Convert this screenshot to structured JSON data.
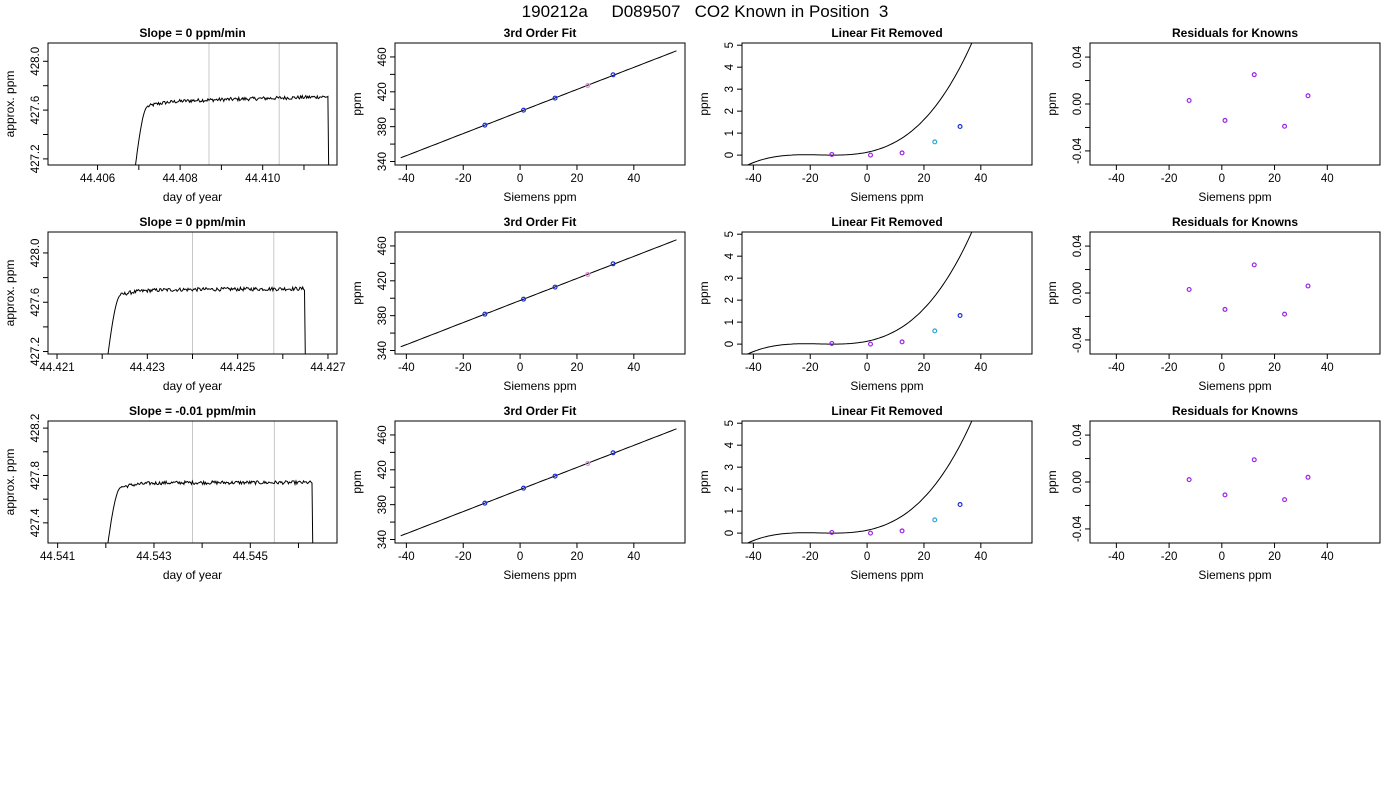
{
  "title": "190212a     D089507   CO2 Known in Position  3",
  "colors": {
    "trace": "#000000",
    "window_line": "#c8c8c8",
    "point_blue": "#1a2fd6",
    "point_purple": "#9a22e8",
    "point_cyan": "#2aa7d6",
    "point_pink": "#e08ad6"
  },
  "chart_data": [
    {
      "type": "line",
      "row": 0,
      "col": 0,
      "title": "Slope =  0  ppm/min",
      "xlabel": "day of year",
      "ylabel": "approx. ppm",
      "xlim": [
        44.4048,
        44.4118
      ],
      "ylim": [
        427.15,
        428.15
      ],
      "xticks": [
        44.406,
        44.407,
        44.408,
        44.409,
        44.41,
        44.411
      ],
      "xtick_labels": [
        "44.406",
        "",
        "44.408",
        "",
        "44.410",
        ""
      ],
      "yticks": [
        427.2,
        427.4,
        427.6,
        427.8,
        428.0
      ],
      "ytick_labels": [
        "427.2",
        "",
        "427.6",
        "",
        "428.0"
      ],
      "vlines": [
        44.4087,
        44.4104
      ],
      "trace": {
        "start": 44.4069,
        "end": 44.4116,
        "plateau": 427.67,
        "low": 427.1,
        "rise_days": 0.00032,
        "drift": 0.04
      }
    },
    {
      "type": "scatter",
      "row": 0,
      "col": 1,
      "title": "3rd Order Fit",
      "xlabel": "Siemens ppm",
      "ylabel": "ppm",
      "xlim": [
        -44,
        58
      ],
      "ylim": [
        336,
        476
      ],
      "xticks": [
        -40,
        -20,
        0,
        20,
        40
      ],
      "yticks": [
        340,
        360,
        380,
        400,
        420,
        440,
        460
      ],
      "ytick_labels": [
        "340",
        "",
        "380",
        "",
        "420",
        "",
        "460"
      ],
      "fit": {
        "x_start": -42,
        "x_end": 55
      },
      "points": [
        {
          "x": -12.4,
          "y": 381.7,
          "color": "blue"
        },
        {
          "x": 1.2,
          "y": 398.9,
          "color": "blue"
        },
        {
          "x": 12.3,
          "y": 412.8,
          "color": "blue"
        },
        {
          "x": 23.8,
          "y": 427.3,
          "color": "pink"
        },
        {
          "x": 32.7,
          "y": 439.5,
          "color": "blue"
        }
      ]
    },
    {
      "type": "scatter",
      "row": 0,
      "col": 2,
      "title": "Linear Fit Removed",
      "xlabel": "Siemens ppm",
      "ylabel": "ppm",
      "xlim": [
        -44,
        58
      ],
      "ylim": [
        -0.45,
        5.1
      ],
      "xticks": [
        -40,
        -20,
        0,
        20,
        40
      ],
      "yticks": [
        0,
        1,
        2,
        3,
        4,
        5
      ],
      "fit": {
        "x_start": -42,
        "x_end": 55
      },
      "points": [
        {
          "x": -12.4,
          "y": 0.03,
          "color": "purple"
        },
        {
          "x": 1.2,
          "y": 0.0,
          "color": "purple"
        },
        {
          "x": 12.3,
          "y": 0.1,
          "color": "purple"
        },
        {
          "x": 23.8,
          "y": 0.6,
          "color": "cyan"
        },
        {
          "x": 32.7,
          "y": 1.3,
          "color": "blue"
        }
      ]
    },
    {
      "type": "scatter",
      "row": 0,
      "col": 3,
      "title": "Residuals for Knowns",
      "xlabel": "Siemens ppm",
      "ylabel": "ppm",
      "xlim": [
        -50,
        60
      ],
      "ylim": [
        -0.052,
        0.052
      ],
      "xticks": [
        -40,
        -20,
        0,
        20,
        40
      ],
      "yticks": [
        -0.04,
        -0.02,
        0.0,
        0.02,
        0.04
      ],
      "ytick_labels": [
        "-0.04",
        "",
        "0.00",
        "",
        "0.04"
      ],
      "points": [
        {
          "x": -12.4,
          "y": 0.003,
          "color": "purple"
        },
        {
          "x": 1.2,
          "y": -0.014,
          "color": "purple"
        },
        {
          "x": 12.3,
          "y": 0.025,
          "color": "purple"
        },
        {
          "x": 23.8,
          "y": -0.019,
          "color": "purple"
        },
        {
          "x": 32.7,
          "y": 0.007,
          "color": "purple"
        }
      ]
    },
    {
      "type": "line",
      "row": 1,
      "col": 0,
      "title": "Slope =  0  ppm/min",
      "xlabel": "day of year",
      "ylabel": "approx. ppm",
      "xlim": [
        44.4208,
        44.4272
      ],
      "ylim": [
        427.18,
        428.17
      ],
      "xticks": [
        44.421,
        44.422,
        44.423,
        44.424,
        44.425,
        44.426,
        44.427
      ],
      "xtick_labels": [
        "44.421",
        "",
        "44.423",
        "",
        "44.425",
        "",
        "44.427"
      ],
      "yticks": [
        427.2,
        427.4,
        427.6,
        427.8,
        428.0
      ],
      "ytick_labels": [
        "427.2",
        "",
        "427.6",
        "",
        "428.0"
      ],
      "vlines": [
        44.424,
        44.4258
      ],
      "trace": {
        "start": 44.4221,
        "end": 44.4265,
        "plateau": 427.7,
        "low": 427.1,
        "rise_days": 0.00032,
        "drift": 0.01
      }
    },
    {
      "type": "scatter",
      "row": 1,
      "col": 1,
      "title": "3rd Order Fit",
      "xlabel": "Siemens ppm",
      "ylabel": "ppm",
      "xlim": [
        -44,
        58
      ],
      "ylim": [
        336,
        476
      ],
      "xticks": [
        -40,
        -20,
        0,
        20,
        40
      ],
      "yticks": [
        340,
        360,
        380,
        400,
        420,
        440,
        460
      ],
      "ytick_labels": [
        "340",
        "",
        "380",
        "",
        "420",
        "",
        "460"
      ],
      "fit": {
        "x_start": -42,
        "x_end": 55
      },
      "points": [
        {
          "x": -12.4,
          "y": 381.7,
          "color": "blue"
        },
        {
          "x": 1.2,
          "y": 398.9,
          "color": "blue"
        },
        {
          "x": 12.3,
          "y": 412.8,
          "color": "blue"
        },
        {
          "x": 23.8,
          "y": 427.3,
          "color": "pink"
        },
        {
          "x": 32.7,
          "y": 439.5,
          "color": "blue"
        }
      ]
    },
    {
      "type": "scatter",
      "row": 1,
      "col": 2,
      "title": "Linear Fit Removed",
      "xlabel": "Siemens ppm",
      "ylabel": "ppm",
      "xlim": [
        -44,
        58
      ],
      "ylim": [
        -0.45,
        5.1
      ],
      "xticks": [
        -40,
        -20,
        0,
        20,
        40
      ],
      "yticks": [
        0,
        1,
        2,
        3,
        4,
        5
      ],
      "fit": {
        "x_start": -42,
        "x_end": 55
      },
      "points": [
        {
          "x": -12.4,
          "y": 0.03,
          "color": "purple"
        },
        {
          "x": 1.2,
          "y": 0.0,
          "color": "purple"
        },
        {
          "x": 12.3,
          "y": 0.1,
          "color": "purple"
        },
        {
          "x": 23.8,
          "y": 0.6,
          "color": "cyan"
        },
        {
          "x": 32.7,
          "y": 1.3,
          "color": "blue"
        }
      ]
    },
    {
      "type": "scatter",
      "row": 1,
      "col": 3,
      "title": "Residuals for Knowns",
      "xlabel": "Siemens ppm",
      "ylabel": "ppm",
      "xlim": [
        -50,
        60
      ],
      "ylim": [
        -0.052,
        0.052
      ],
      "xticks": [
        -40,
        -20,
        0,
        20,
        40
      ],
      "yticks": [
        -0.04,
        -0.02,
        0.0,
        0.02,
        0.04
      ],
      "ytick_labels": [
        "-0.04",
        "",
        "0.00",
        "",
        "0.04"
      ],
      "points": [
        {
          "x": -12.4,
          "y": 0.003,
          "color": "purple"
        },
        {
          "x": 1.2,
          "y": -0.014,
          "color": "purple"
        },
        {
          "x": 12.3,
          "y": 0.024,
          "color": "purple"
        },
        {
          "x": 23.8,
          "y": -0.018,
          "color": "purple"
        },
        {
          "x": 32.7,
          "y": 0.006,
          "color": "purple"
        }
      ]
    },
    {
      "type": "line",
      "row": 2,
      "col": 0,
      "title": "Slope =  -0.01  ppm/min",
      "xlabel": "day of year",
      "ylabel": "approx. ppm",
      "xlim": [
        44.5408,
        44.5468
      ],
      "ylim": [
        427.23,
        428.26
      ],
      "xticks": [
        44.541,
        44.542,
        44.543,
        44.544,
        44.545,
        44.546
      ],
      "xtick_labels": [
        "44.541",
        "",
        "44.543",
        "",
        "44.545",
        ""
      ],
      "yticks": [
        427.4,
        427.6,
        427.8,
        428.0,
        428.2
      ],
      "ytick_labels": [
        "427.4",
        "",
        "427.8",
        "",
        "428.2"
      ],
      "vlines": [
        44.5438,
        44.5455
      ],
      "trace": {
        "start": 44.542,
        "end": 44.5463,
        "plateau": 427.74,
        "low": 427.1,
        "rise_days": 0.00032,
        "drift": 0.0
      }
    },
    {
      "type": "scatter",
      "row": 2,
      "col": 1,
      "title": "3rd Order Fit",
      "xlabel": "Siemens ppm",
      "ylabel": "ppm",
      "xlim": [
        -44,
        58
      ],
      "ylim": [
        336,
        476
      ],
      "xticks": [
        -40,
        -20,
        0,
        20,
        40
      ],
      "yticks": [
        340,
        360,
        380,
        400,
        420,
        440,
        460
      ],
      "ytick_labels": [
        "340",
        "",
        "380",
        "",
        "420",
        "",
        "460"
      ],
      "fit": {
        "x_start": -42,
        "x_end": 55
      },
      "points": [
        {
          "x": -12.4,
          "y": 381.7,
          "color": "blue"
        },
        {
          "x": 1.2,
          "y": 398.9,
          "color": "blue"
        },
        {
          "x": 12.3,
          "y": 412.8,
          "color": "blue"
        },
        {
          "x": 23.8,
          "y": 427.3,
          "color": "pink"
        },
        {
          "x": 32.7,
          "y": 439.5,
          "color": "blue"
        }
      ]
    },
    {
      "type": "scatter",
      "row": 2,
      "col": 2,
      "title": "Linear Fit Removed",
      "xlabel": "Siemens ppm",
      "ylabel": "ppm",
      "xlim": [
        -44,
        58
      ],
      "ylim": [
        -0.45,
        5.1
      ],
      "xticks": [
        -40,
        -20,
        0,
        20,
        40
      ],
      "yticks": [
        0,
        1,
        2,
        3,
        4,
        5
      ],
      "fit": {
        "x_start": -42,
        "x_end": 55
      },
      "points": [
        {
          "x": -12.4,
          "y": 0.03,
          "color": "purple"
        },
        {
          "x": 1.2,
          "y": 0.0,
          "color": "purple"
        },
        {
          "x": 12.3,
          "y": 0.1,
          "color": "purple"
        },
        {
          "x": 23.8,
          "y": 0.6,
          "color": "cyan"
        },
        {
          "x": 32.7,
          "y": 1.3,
          "color": "blue"
        }
      ]
    },
    {
      "type": "scatter",
      "row": 2,
      "col": 3,
      "title": "Residuals for Knowns",
      "xlabel": "Siemens ppm",
      "ylabel": "ppm",
      "xlim": [
        -50,
        60
      ],
      "ylim": [
        -0.052,
        0.052
      ],
      "xticks": [
        -40,
        -20,
        0,
        20,
        40
      ],
      "yticks": [
        -0.04,
        -0.02,
        0.0,
        0.02,
        0.04
      ],
      "ytick_labels": [
        "-0.04",
        "",
        "0.00",
        "",
        "0.04"
      ],
      "points": [
        {
          "x": -12.4,
          "y": 0.002,
          "color": "purple"
        },
        {
          "x": 1.2,
          "y": -0.011,
          "color": "purple"
        },
        {
          "x": 12.3,
          "y": 0.019,
          "color": "purple"
        },
        {
          "x": 23.8,
          "y": -0.015,
          "color": "purple"
        },
        {
          "x": 32.7,
          "y": 0.004,
          "color": "purple"
        }
      ]
    }
  ]
}
